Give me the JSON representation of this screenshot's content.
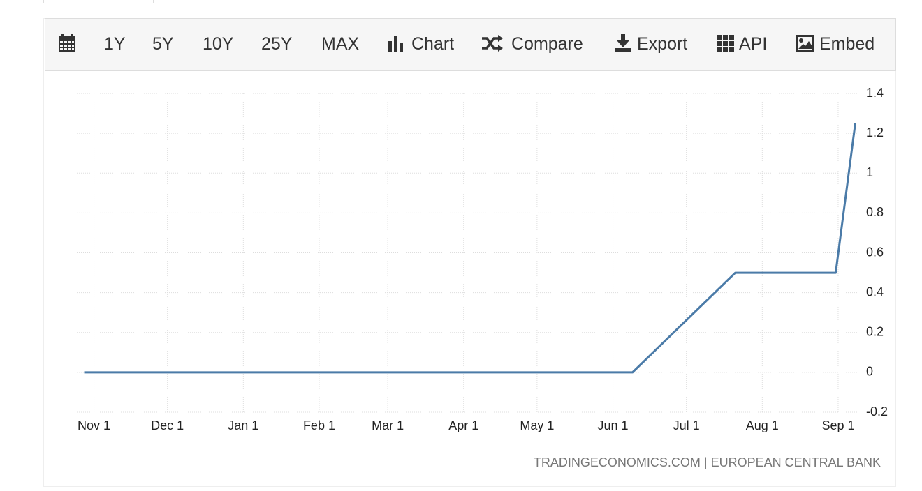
{
  "toolbar": {
    "periods": [
      "1Y",
      "5Y",
      "10Y",
      "25Y",
      "MAX"
    ],
    "buttons": [
      "Chart",
      "Compare",
      "Export",
      "API",
      "Embed"
    ]
  },
  "chart_data": {
    "type": "line",
    "color": "#4b7ba8",
    "grid": true,
    "x": [
      -4,
      220,
      262,
      303,
      311
    ],
    "values": [
      0,
      0,
      0.5,
      0.5,
      1.25
    ],
    "xlim": [
      -7,
      312
    ],
    "xticks": [
      {
        "value": 0,
        "label": "Nov 1"
      },
      {
        "value": 30,
        "label": "Dec 1"
      },
      {
        "value": 61,
        "label": "Jan 1"
      },
      {
        "value": 92,
        "label": "Feb 1"
      },
      {
        "value": 120,
        "label": "Mar 1"
      },
      {
        "value": 151,
        "label": "Apr 1"
      },
      {
        "value": 181,
        "label": "May 1"
      },
      {
        "value": 212,
        "label": "Jun 1"
      },
      {
        "value": 242,
        "label": "Jul 1"
      },
      {
        "value": 273,
        "label": "Aug 1"
      },
      {
        "value": 304,
        "label": "Sep 1"
      }
    ],
    "ylim": [
      -0.2,
      1.4
    ],
    "yticks": [
      -0.2,
      0,
      0.2,
      0.4,
      0.6,
      0.8,
      1,
      1.2,
      1.4
    ],
    "source": "TRADINGECONOMICS.COM | EUROPEAN CENTRAL BANK"
  }
}
